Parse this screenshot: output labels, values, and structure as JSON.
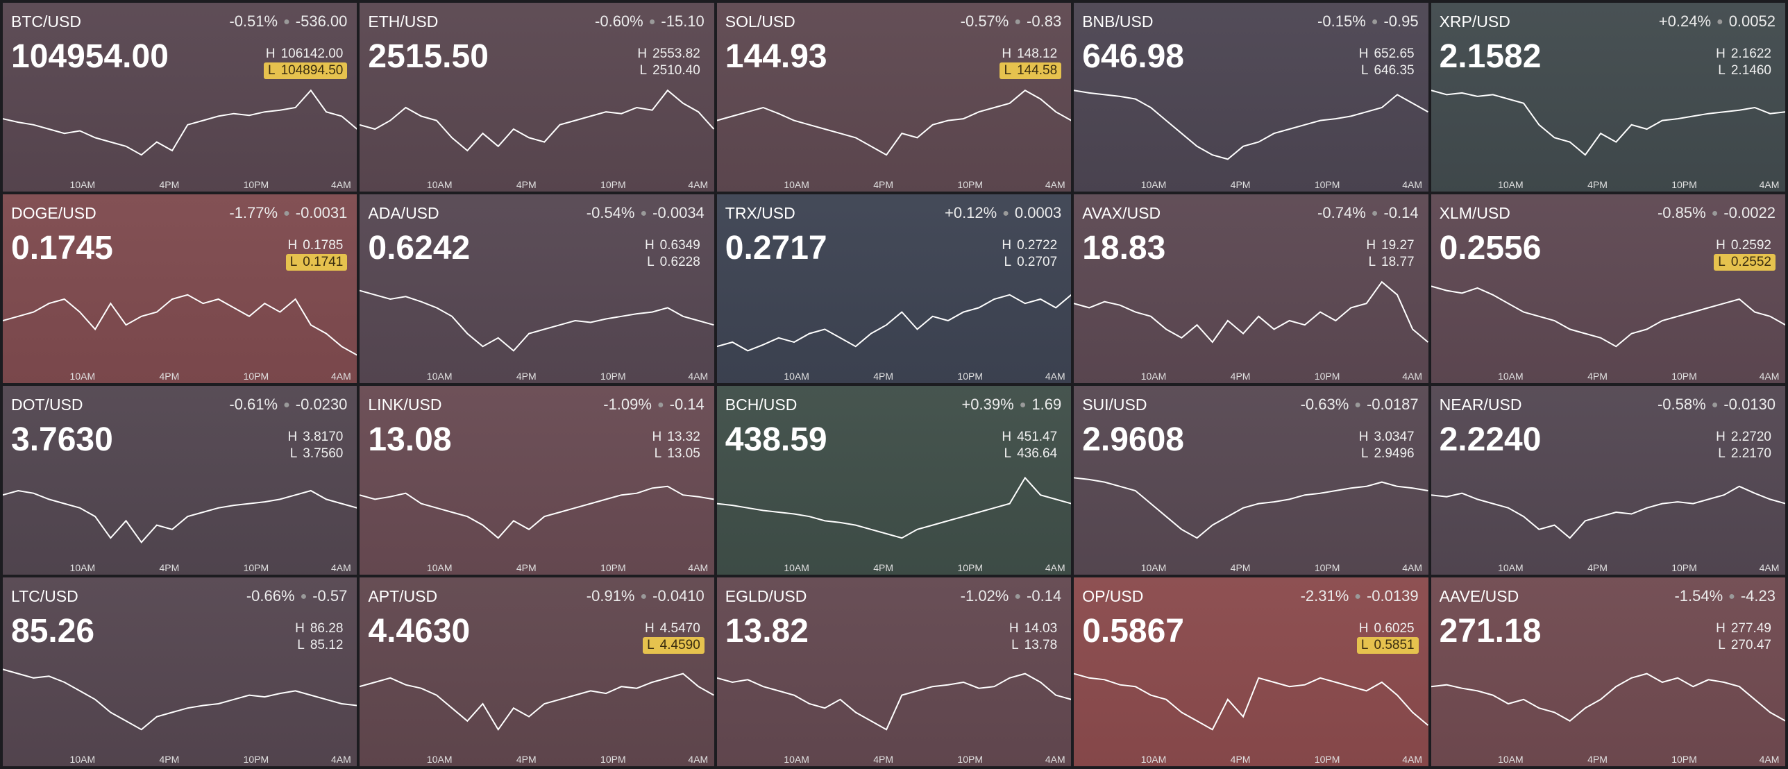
{
  "high_label": "H",
  "low_label": "L",
  "time_axis": [
    "10AM",
    "4PM",
    "10PM",
    "4AM"
  ],
  "tiles": [
    {
      "symbol": "BTC/USD",
      "change_pct": "-0.51%",
      "change": "-536.00",
      "price": "104954.00",
      "high": "106142.00",
      "low": "104894.50",
      "low_highlighted": true,
      "color": "#584650",
      "sparkline": {
        "ylim": [
          0,
          100
        ],
        "values": [
          62,
          58,
          55,
          50,
          45,
          48,
          40,
          35,
          30,
          20,
          35,
          25,
          55,
          60,
          65,
          68,
          66,
          70,
          72,
          75,
          95,
          70,
          65,
          50
        ]
      }
    },
    {
      "symbol": "ETH/USD",
      "change_pct": "-0.60%",
      "change": "-15.10",
      "price": "2515.50",
      "high": "2553.82",
      "low": "2510.40",
      "low_highlighted": false,
      "color": "#5a4750",
      "sparkline": {
        "ylim": [
          0,
          100
        ],
        "values": [
          55,
          50,
          60,
          75,
          65,
          60,
          40,
          25,
          45,
          30,
          50,
          40,
          35,
          55,
          60,
          65,
          70,
          68,
          75,
          72,
          95,
          80,
          70,
          50
        ]
      }
    },
    {
      "symbol": "SOL/USD",
      "change_pct": "-0.57%",
      "change": "-0.83",
      "price": "144.93",
      "high": "148.12",
      "low": "144.58",
      "low_highlighted": true,
      "color": "#5e4850",
      "sparkline": {
        "ylim": [
          0,
          100
        ],
        "values": [
          60,
          65,
          70,
          75,
          68,
          60,
          55,
          50,
          45,
          40,
          30,
          20,
          45,
          40,
          55,
          60,
          62,
          70,
          75,
          80,
          95,
          85,
          70,
          60
        ]
      }
    },
    {
      "symbol": "BNB/USD",
      "change_pct": "-0.15%",
      "change": "-0.95",
      "price": "646.98",
      "high": "652.65",
      "low": "646.35",
      "low_highlighted": false,
      "color": "#4c4552",
      "sparkline": {
        "ylim": [
          0,
          100
        ],
        "values": [
          95,
          92,
          90,
          88,
          85,
          75,
          60,
          45,
          30,
          20,
          15,
          30,
          35,
          45,
          50,
          55,
          60,
          62,
          65,
          70,
          75,
          90,
          80,
          70
        ]
      }
    },
    {
      "symbol": "XRP/USD",
      "change_pct": "+0.24%",
      "change": "0.0052",
      "price": "2.1582",
      "high": "2.1622",
      "low": "2.1460",
      "low_highlighted": false,
      "color": "#414a4d",
      "sparkline": {
        "ylim": [
          0,
          100
        ],
        "values": [
          95,
          90,
          92,
          88,
          90,
          85,
          80,
          55,
          40,
          35,
          20,
          45,
          35,
          55,
          50,
          60,
          62,
          65,
          68,
          70,
          72,
          75,
          68,
          70
        ]
      }
    },
    {
      "symbol": "DOGE/USD",
      "change_pct": "-1.77%",
      "change": "-0.0031",
      "price": "0.1745",
      "high": "0.1785",
      "low": "0.1741",
      "low_highlighted": true,
      "color": "#7e4a4e",
      "sparkline": {
        "ylim": [
          0,
          100
        ],
        "values": [
          50,
          55,
          60,
          70,
          75,
          60,
          40,
          70,
          45,
          55,
          60,
          75,
          80,
          70,
          75,
          65,
          55,
          70,
          60,
          75,
          45,
          35,
          20,
          10
        ]
      }
    },
    {
      "symbol": "ADA/USD",
      "change_pct": "-0.54%",
      "change": "-0.0034",
      "price": "0.6242",
      "high": "0.6349",
      "low": "0.6228",
      "low_highlighted": false,
      "color": "#564752",
      "sparkline": {
        "ylim": [
          0,
          100
        ],
        "values": [
          85,
          80,
          75,
          78,
          72,
          65,
          55,
          35,
          20,
          30,
          15,
          35,
          40,
          45,
          50,
          48,
          52,
          55,
          58,
          60,
          65,
          55,
          50,
          45
        ]
      }
    },
    {
      "symbol": "TRX/USD",
      "change_pct": "+0.12%",
      "change": "0.0003",
      "price": "0.2717",
      "high": "0.2722",
      "low": "0.2707",
      "low_highlighted": false,
      "color": "#3d4352",
      "sparkline": {
        "ylim": [
          0,
          100
        ],
        "values": [
          20,
          25,
          15,
          22,
          30,
          25,
          35,
          40,
          30,
          20,
          35,
          45,
          60,
          40,
          55,
          50,
          60,
          65,
          75,
          80,
          70,
          75,
          65,
          80
        ]
      }
    },
    {
      "symbol": "AVAX/USD",
      "change_pct": "-0.74%",
      "change": "-0.14",
      "price": "18.83",
      "high": "19.27",
      "low": "18.77",
      "low_highlighted": false,
      "color": "#5c4852",
      "sparkline": {
        "ylim": [
          0,
          100
        ],
        "values": [
          70,
          65,
          72,
          68,
          60,
          55,
          40,
          30,
          45,
          25,
          50,
          35,
          55,
          40,
          50,
          45,
          60,
          50,
          65,
          70,
          95,
          80,
          40,
          25
        ]
      }
    },
    {
      "symbol": "XLM/USD",
      "change_pct": "-0.85%",
      "change": "-0.0022",
      "price": "0.2556",
      "high": "0.2592",
      "low": "0.2552",
      "low_highlighted": true,
      "color": "#5e4852",
      "sparkline": {
        "ylim": [
          0,
          100
        ],
        "values": [
          90,
          85,
          82,
          88,
          80,
          70,
          60,
          55,
          50,
          40,
          35,
          30,
          20,
          35,
          40,
          50,
          55,
          60,
          65,
          70,
          75,
          60,
          55,
          45
        ]
      }
    },
    {
      "symbol": "DOT/USD",
      "change_pct": "-0.61%",
      "change": "-0.0230",
      "price": "3.7630",
      "high": "3.8170",
      "low": "3.7560",
      "low_highlighted": false,
      "color": "#524650",
      "sparkline": {
        "ylim": [
          0,
          100
        ],
        "values": [
          70,
          75,
          72,
          65,
          60,
          55,
          45,
          20,
          40,
          15,
          35,
          30,
          45,
          50,
          55,
          58,
          60,
          62,
          65,
          70,
          75,
          65,
          60,
          55
        ]
      }
    },
    {
      "symbol": "LINK/USD",
      "change_pct": "-1.09%",
      "change": "-0.14",
      "price": "13.08",
      "high": "13.32",
      "low": "13.05",
      "low_highlighted": false,
      "color": "#684a52",
      "sparkline": {
        "ylim": [
          0,
          100
        ],
        "values": [
          70,
          65,
          68,
          72,
          60,
          55,
          50,
          45,
          35,
          20,
          40,
          30,
          45,
          50,
          55,
          60,
          65,
          70,
          72,
          78,
          80,
          70,
          68,
          65
        ]
      }
    },
    {
      "symbol": "BCH/USD",
      "change_pct": "+0.39%",
      "change": "1.69",
      "price": "438.59",
      "high": "451.47",
      "low": "436.64",
      "low_highlighted": false,
      "color": "#3f4e48",
      "sparkline": {
        "ylim": [
          0,
          100
        ],
        "values": [
          60,
          58,
          55,
          52,
          50,
          48,
          45,
          40,
          38,
          35,
          30,
          25,
          20,
          30,
          35,
          40,
          45,
          50,
          55,
          60,
          90,
          70,
          65,
          60
        ]
      }
    },
    {
      "symbol": "SUI/USD",
      "change_pct": "-0.63%",
      "change": "-0.0187",
      "price": "2.9608",
      "high": "3.0347",
      "low": "2.9496",
      "low_highlighted": false,
      "color": "#574852",
      "sparkline": {
        "ylim": [
          0,
          100
        ],
        "values": [
          90,
          88,
          85,
          80,
          75,
          60,
          45,
          30,
          20,
          35,
          45,
          55,
          60,
          62,
          65,
          70,
          72,
          75,
          78,
          80,
          85,
          80,
          78,
          75
        ]
      }
    },
    {
      "symbol": "NEAR/USD",
      "change_pct": "-0.58%",
      "change": "-0.0130",
      "price": "2.2240",
      "high": "2.2720",
      "low": "2.2170",
      "low_highlighted": false,
      "color": "#534752",
      "sparkline": {
        "ylim": [
          0,
          100
        ],
        "values": [
          70,
          68,
          72,
          65,
          60,
          55,
          45,
          30,
          35,
          20,
          40,
          45,
          50,
          48,
          55,
          60,
          62,
          60,
          65,
          70,
          80,
          72,
          65,
          60
        ]
      }
    },
    {
      "symbol": "LTC/USD",
      "change_pct": "-0.66%",
      "change": "-0.57",
      "price": "85.26",
      "high": "86.28",
      "low": "85.12",
      "low_highlighted": false,
      "color": "#554650",
      "sparkline": {
        "ylim": [
          0,
          100
        ],
        "values": [
          90,
          85,
          80,
          82,
          75,
          65,
          55,
          40,
          30,
          20,
          35,
          40,
          45,
          48,
          50,
          55,
          60,
          58,
          62,
          65,
          60,
          55,
          50,
          48
        ]
      }
    },
    {
      "symbol": "APT/USD",
      "change_pct": "-0.91%",
      "change": "-0.0410",
      "price": "4.4630",
      "high": "4.5470",
      "low": "4.4590",
      "low_highlighted": true,
      "color": "#61474e",
      "sparkline": {
        "ylim": [
          0,
          100
        ],
        "values": [
          70,
          75,
          80,
          72,
          68,
          60,
          45,
          30,
          50,
          20,
          45,
          35,
          50,
          55,
          60,
          65,
          62,
          70,
          68,
          75,
          80,
          85,
          70,
          60
        ]
      }
    },
    {
      "symbol": "EGLD/USD",
      "change_pct": "-1.02%",
      "change": "-0.14",
      "price": "13.82",
      "high": "14.03",
      "low": "13.78",
      "low_highlighted": false,
      "color": "#634850",
      "sparkline": {
        "ylim": [
          0,
          100
        ],
        "values": [
          80,
          75,
          78,
          70,
          65,
          60,
          50,
          45,
          55,
          40,
          30,
          20,
          60,
          65,
          70,
          72,
          75,
          68,
          70,
          80,
          85,
          75,
          60,
          55
        ]
      }
    },
    {
      "symbol": "OP/USD",
      "change_pct": "-2.31%",
      "change": "-0.0139",
      "price": "0.5867",
      "high": "0.6025",
      "low": "0.5851",
      "low_highlighted": true,
      "color": "#8a4a4c",
      "sparkline": {
        "ylim": [
          0,
          100
        ],
        "values": [
          85,
          80,
          78,
          72,
          70,
          60,
          55,
          40,
          30,
          20,
          55,
          35,
          80,
          75,
          70,
          72,
          80,
          75,
          70,
          65,
          75,
          60,
          40,
          25
        ]
      }
    },
    {
      "symbol": "AAVE/USD",
      "change_pct": "-1.54%",
      "change": "-4.23",
      "price": "271.18",
      "high": "277.49",
      "low": "270.47",
      "low_highlighted": false,
      "color": "#704a50",
      "sparkline": {
        "ylim": [
          0,
          100
        ],
        "values": [
          70,
          72,
          68,
          65,
          60,
          50,
          55,
          45,
          40,
          30,
          45,
          55,
          70,
          80,
          85,
          75,
          80,
          70,
          78,
          75,
          70,
          55,
          40,
          30
        ]
      }
    }
  ]
}
